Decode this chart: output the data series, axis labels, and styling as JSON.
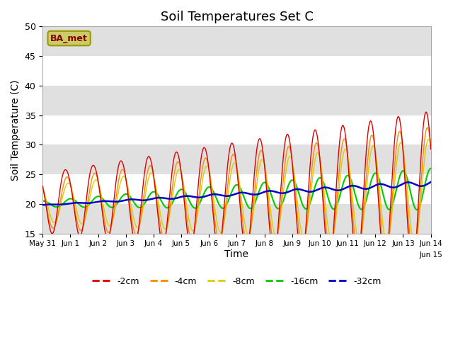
{
  "title": "Soil Temperatures Set C",
  "xlabel": "Time",
  "ylabel": "Soil Temperature (C)",
  "ylim": [
    15,
    50
  ],
  "xlim": [
    0,
    336
  ],
  "x_tick_positions": [
    0,
    24,
    48,
    72,
    96,
    120,
    144,
    168,
    192,
    216,
    240,
    264,
    288,
    312,
    336
  ],
  "x_tick_labels": [
    "May 31",
    "Jun 1",
    "Jun 2",
    "Jun 3",
    "Jun 4",
    "Jun 5",
    "Jun 6",
    "Jun 7",
    "Jun 8",
    "Jun 9",
    "Jun 10",
    "Jun 11",
    "Jun 12",
    "Jun 13",
    "Jun 14"
  ],
  "x_last_label": "Jun 15",
  "colors": {
    "-2cm": "#dd0000",
    "-4cm": "#ff8800",
    "-8cm": "#ddcc00",
    "-16cm": "#00cc00",
    "-32cm": "#0000cc"
  },
  "legend_labels": [
    "-2cm",
    "-4cm",
    "-8cm",
    "-16cm",
    "-32cm"
  ],
  "annotation_text": "BA_met",
  "annotation_color": "#880000",
  "annotation_bg": "#cccc66",
  "band_color": "#e0e0e0",
  "band_ranges": [
    [
      15,
      20
    ],
    [
      25,
      30
    ],
    [
      35,
      40
    ],
    [
      45,
      50
    ]
  ],
  "title_fontsize": 13,
  "axis_label_fontsize": 10
}
